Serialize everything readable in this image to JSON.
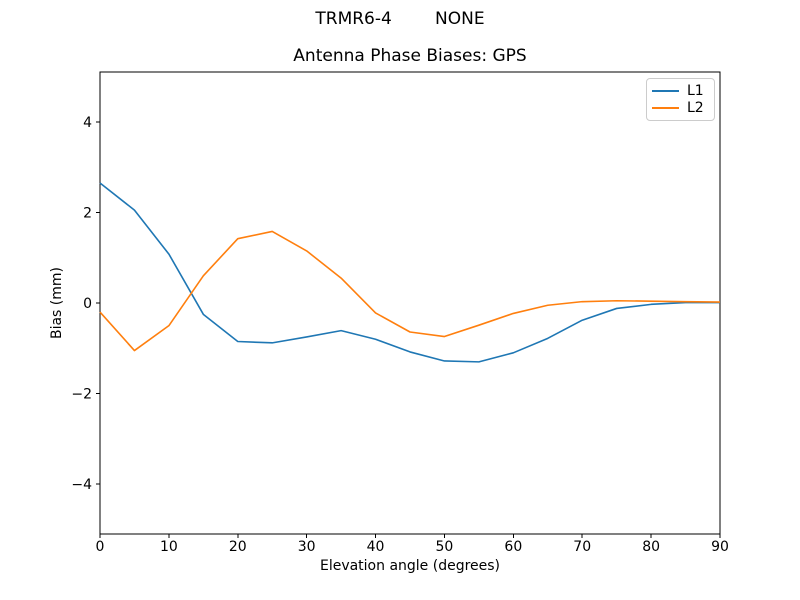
{
  "chart_data": {
    "type": "line",
    "suptitle": "TRMR6-4        NONE",
    "title": "Antenna Phase Biases: GPS",
    "xlabel": "Elevation angle (degrees)",
    "ylabel": "Bias (mm)",
    "x": [
      0,
      5,
      10,
      15,
      20,
      25,
      30,
      35,
      40,
      45,
      50,
      55,
      60,
      65,
      70,
      75,
      80,
      85,
      90
    ],
    "series": [
      {
        "name": "L1",
        "color": "#1f77b4",
        "values": [
          2.65,
          2.05,
          1.08,
          -0.25,
          -0.85,
          -0.88,
          -0.75,
          -0.61,
          -0.8,
          -1.08,
          -1.28,
          -1.3,
          -1.1,
          -0.78,
          -0.38,
          -0.12,
          -0.03,
          0.01,
          0.01
        ]
      },
      {
        "name": "L2",
        "color": "#ff7f0e",
        "values": [
          -0.2,
          -1.05,
          -0.5,
          0.6,
          1.42,
          1.58,
          1.15,
          0.55,
          -0.22,
          -0.64,
          -0.74,
          -0.49,
          -0.23,
          -0.05,
          0.03,
          0.05,
          0.04,
          0.03,
          0.02
        ]
      }
    ],
    "xticks": [
      0,
      10,
      20,
      30,
      40,
      50,
      60,
      70,
      80,
      90
    ],
    "yticks": [
      -4,
      -2,
      0,
      2,
      4
    ],
    "xlim": [
      0,
      90
    ],
    "ylim": [
      -5.1,
      5.1
    ],
    "grid": false,
    "legend_position": "upper right",
    "axis_color": "#000000",
    "legend_edge_color": "#cccccc"
  }
}
